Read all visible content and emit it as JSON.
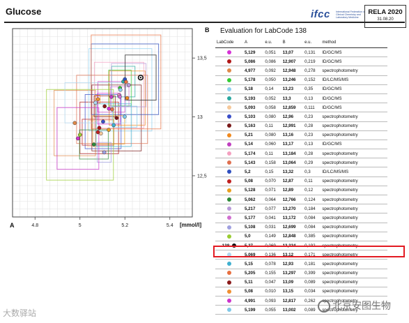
{
  "header": {
    "title": "Glucose",
    "logo_text": "ifcc",
    "logo_subtext": "International Federation of Clinical Chemistry and Laboratory Medicine",
    "rela": "RELA 2020",
    "date": "31.08.20"
  },
  "panel_a": {
    "label": "A",
    "unit": "[mmol/l]"
  },
  "panel_b": {
    "label": "B",
    "title": "Evaluation for LabCode 138"
  },
  "table": {
    "headers": [
      "LabCode",
      "A",
      "e.u.",
      "B",
      "e.u.",
      "method"
    ],
    "rows": [
      {
        "code": "",
        "color": "#d633d6",
        "a": "5,129",
        "eua": "0,051",
        "b": "13,07",
        "eub": "0,131",
        "method": "ID/GC/MS"
      },
      {
        "code": "",
        "color": "#b01818",
        "a": "5,086",
        "eua": "0,086",
        "b": "12,907",
        "eub": "0,219",
        "method": "ID/GC/MS"
      },
      {
        "code": "",
        "color": "#e08a4a",
        "a": "4,977",
        "eua": "0,092",
        "b": "12,948",
        "eub": "0,278",
        "method": "spectrophotometry"
      },
      {
        "code": "",
        "color": "#33cc33",
        "a": "5,178",
        "eua": "0,050",
        "b": "13,246",
        "eub": "0,152",
        "method": "ID/LC/MS/MS"
      },
      {
        "code": "",
        "color": "#8fd0f0",
        "a": "5,18",
        "eua": "0,14",
        "b": "13,23",
        "eub": "0,35",
        "method": "ID/GC/MS"
      },
      {
        "code": "",
        "color": "#2aa8a0",
        "a": "5,193",
        "eua": "0,052",
        "b": "13,3",
        "eub": "0,13",
        "method": "ID/GC/MS"
      },
      {
        "code": "",
        "color": "#f5c89a",
        "a": "5,093",
        "eua": "0,058",
        "b": "12,859",
        "eub": "0,111",
        "method": "ID/GC/MS"
      },
      {
        "code": "",
        "color": "#3a4ec8",
        "a": "5,103",
        "eua": "0,080",
        "b": "12,96",
        "eub": "0,23",
        "method": "spectrophotometry"
      },
      {
        "code": "",
        "color": "#7a1a1a",
        "a": "5,163",
        "eua": "0,11",
        "b": "12,991",
        "eub": "0,28",
        "method": "spectrophotometry"
      },
      {
        "code": "",
        "color": "#f08a20",
        "a": "5,21",
        "eua": "0,080",
        "b": "13,16",
        "eub": "0,23",
        "method": "spectrophotometry"
      },
      {
        "code": "",
        "color": "#c040c0",
        "a": "5,14",
        "eua": "0,060",
        "b": "13,17",
        "eub": "0,13",
        "method": "ID/GC/MS"
      },
      {
        "code": "",
        "color": "#f4a0c0",
        "a": "5,174",
        "eua": "0,11",
        "b": "13,184",
        "eub": "0,28",
        "method": "spectrophotometry"
      },
      {
        "code": "",
        "color": "#e07050",
        "a": "5,143",
        "eua": "0,158",
        "b": "13,064",
        "eub": "0,29",
        "method": "spectrophotometry"
      },
      {
        "code": "",
        "color": "#3050c0",
        "a": "5,2",
        "eua": "0,15",
        "b": "13,32",
        "eub": "0,3",
        "method": "ID/LC/MS/MS"
      },
      {
        "code": "",
        "color": "#c02020",
        "a": "5,08",
        "eua": "0,070",
        "b": "12,87",
        "eub": "0,11",
        "method": "spectrophotometry"
      },
      {
        "code": "",
        "color": "#e8a020",
        "a": "5,128",
        "eua": "0,071",
        "b": "12,89",
        "eub": "0,12",
        "method": "spectrophotometry"
      },
      {
        "code": "",
        "color": "#2e8b3a",
        "a": "5,062",
        "eua": "0,064",
        "b": "12,766",
        "eub": "0,124",
        "method": "spectrophotometry"
      },
      {
        "code": "",
        "color": "#b89ad8",
        "a": "5,217",
        "eua": "0,077",
        "b": "13,270",
        "eub": "0,184",
        "method": "spectrophotometry"
      },
      {
        "code": "",
        "color": "#d070d0",
        "a": "5,177",
        "eua": "0,041",
        "b": "13,172",
        "eub": "0,084",
        "method": "spectrophotometry"
      },
      {
        "code": "",
        "color": "#a0a0e0",
        "a": "5,108",
        "eua": "0,031",
        "b": "12,699",
        "eub": "0,084",
        "method": "spectrophotometry"
      },
      {
        "code": "",
        "color": "#9acd32",
        "a": "5,0",
        "eua": "0,149",
        "b": "12,848",
        "eub": "0,385",
        "method": "spectrophotometry"
      },
      {
        "code": "138",
        "color": "#111111",
        "a": "5,27",
        "eua": "0,069",
        "b": "13,334",
        "eub": "0,192",
        "method": "spectrophotometry"
      },
      {
        "code": "",
        "color": "#b0d8f0",
        "a": "5,069",
        "eua": "0,136",
        "b": "13,12",
        "eub": "0,171",
        "method": "spectrophotometry"
      },
      {
        "code": "",
        "color": "#40b0d0",
        "a": "5,15",
        "eua": "0,078",
        "b": "12,93",
        "eub": "0,181",
        "method": "spectrophotometry"
      },
      {
        "code": "",
        "color": "#e87040",
        "a": "5,205",
        "eua": "0,155",
        "b": "13,297",
        "eub": "0,399",
        "method": "spectrophotometry"
      },
      {
        "code": "",
        "color": "#8b1a1a",
        "a": "5,11",
        "eua": "0,047",
        "b": "13,09",
        "eub": "0,089",
        "method": "spectrophotometry"
      },
      {
        "code": "",
        "color": "#f09030",
        "a": "5,08",
        "eua": "0,010",
        "b": "13,15",
        "eub": "0,034",
        "method": "spectrophotometry"
      },
      {
        "code": "",
        "color": "#cc33cc",
        "a": "4,991",
        "eua": "0,093",
        "b": "12,817",
        "eub": "0,262",
        "method": "spectrophotometry"
      },
      {
        "code": "",
        "color": "#80c8e8",
        "a": "5,199",
        "eua": "0,055",
        "b": "13,002",
        "eub": "0,089",
        "method": "spectrophotometry"
      }
    ]
  },
  "chart_data": {
    "type": "scatter",
    "title": "",
    "xlabel": "[mmol/l]",
    "ylabel": "",
    "xlim": [
      4.7,
      5.5
    ],
    "ylim": [
      12.15,
      13.75
    ],
    "xticks": [
      "4,8",
      "5",
      "5,2",
      "5,4"
    ],
    "yticks": [
      "12,5",
      "13",
      "13,5"
    ],
    "grid": true,
    "highlight_code": "138"
  },
  "watermarks": {
    "left": "大数驿站",
    "right": "北京安图生物"
  }
}
